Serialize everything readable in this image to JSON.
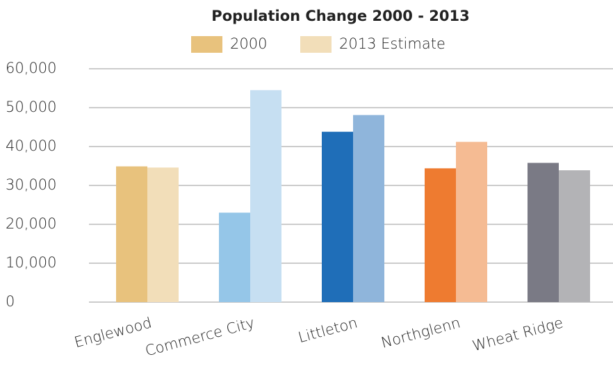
{
  "chart_data": {
    "type": "bar",
    "title": "Population Change 2000 - 2013",
    "categories": [
      "Englewood",
      "Commerce City",
      "Littleton",
      "Northglenn",
      "Wheat Ridge"
    ],
    "series": [
      {
        "name": "2000",
        "color": "#e8c27d",
        "colors": [
          "#e8c27d",
          "#95c6e8",
          "#1f6eb8",
          "#ee7b30",
          "#7a7a85"
        ],
        "values": [
          34900,
          23000,
          43800,
          34400,
          35800
        ]
      },
      {
        "name": "2013 Estimate",
        "color": "#f2deb9",
        "colors": [
          "#f2deb9",
          "#c6dff2",
          "#8fb5db",
          "#f5bb93",
          "#b3b3b6"
        ],
        "values": [
          34600,
          54500,
          48100,
          41200,
          33900
        ]
      }
    ],
    "ylim": [
      0,
      60000
    ],
    "yticks": [
      0,
      {
        "value": 10000,
        "label": "10,000"
      },
      {
        "value": 20000,
        "label": "20,000"
      },
      {
        "value": 30000,
        "label": "30,000"
      },
      {
        "value": 40000,
        "label": "40,000"
      },
      {
        "value": 50000,
        "label": "50,000"
      },
      {
        "value": 60000,
        "label": "60,000"
      }
    ],
    "grid": true,
    "legend": "top"
  }
}
